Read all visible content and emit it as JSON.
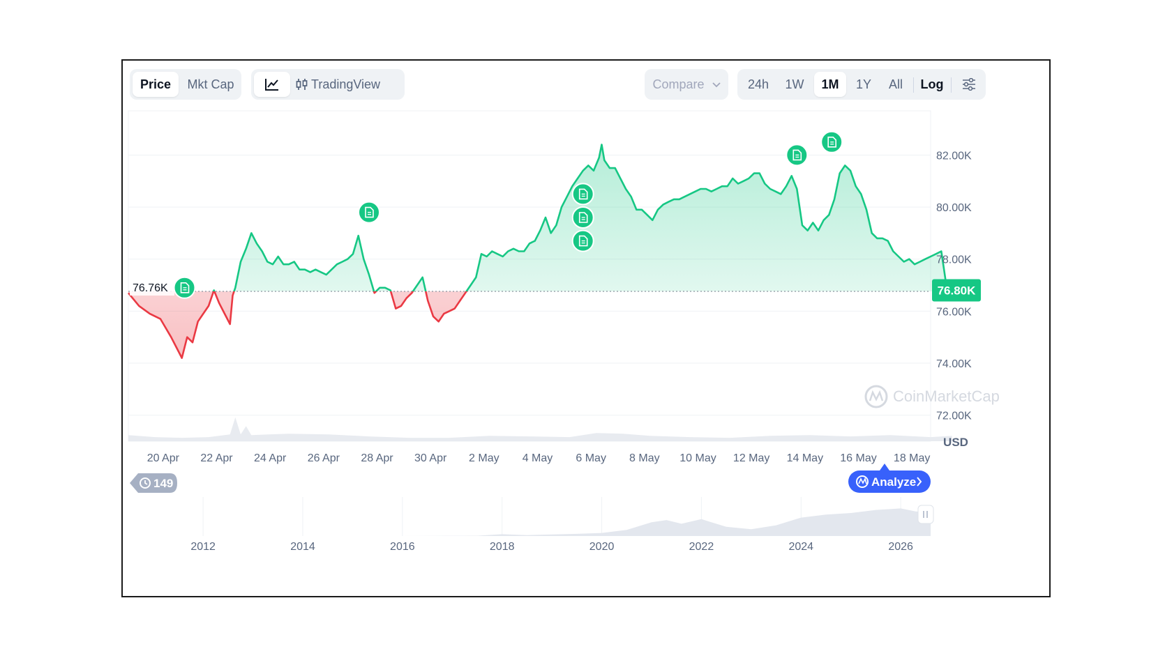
{
  "toolbar": {
    "view_tabs": [
      {
        "label": "Price",
        "active": true
      },
      {
        "label": "Mkt Cap",
        "active": false
      }
    ],
    "chart_modes": [
      {
        "icon": "line-chart-icon",
        "label": "",
        "active": true
      },
      {
        "icon": "candlestick-icon",
        "label": "TradingView",
        "active": false
      }
    ],
    "compare_label": "Compare",
    "ranges": [
      {
        "label": "24h",
        "active": false
      },
      {
        "label": "1W",
        "active": false
      },
      {
        "label": "1M",
        "active": true
      },
      {
        "label": "1Y",
        "active": false
      },
      {
        "label": "All",
        "active": false
      }
    ],
    "log_label": "Log",
    "settings_icon": "sliders-icon"
  },
  "watermark": "CoinMarketCap",
  "news_badge_count": "149",
  "analyze_label": "Analyze",
  "colors": {
    "up": "#16c784",
    "down": "#ea3943",
    "accent": "#3861fb"
  },
  "chart_data": {
    "type": "area",
    "currency": "USD",
    "baseline_value": 76.76,
    "baseline_label": "76.76K",
    "current_value": 76.8,
    "current_label": "76.80K",
    "ylim": [
      71.0,
      83.7
    ],
    "yticks": [
      {
        "value": 72.0,
        "label": "72.00K"
      },
      {
        "value": 74.0,
        "label": "74.00K"
      },
      {
        "value": 76.0,
        "label": "76.00K"
      },
      {
        "value": 78.0,
        "label": "78.00K"
      },
      {
        "value": 80.0,
        "label": "80.00K"
      },
      {
        "value": 82.0,
        "label": "82.00K"
      }
    ],
    "xlim": [
      0,
      30
    ],
    "xticks": [
      {
        "value": 1.3,
        "label": "20 Apr"
      },
      {
        "value": 3.3,
        "label": "22 Apr"
      },
      {
        "value": 5.3,
        "label": "24 Apr"
      },
      {
        "value": 7.3,
        "label": "26 Apr"
      },
      {
        "value": 9.3,
        "label": "28 Apr"
      },
      {
        "value": 11.3,
        "label": "30 Apr"
      },
      {
        "value": 13.3,
        "label": "2 May"
      },
      {
        "value": 15.3,
        "label": "4 May"
      },
      {
        "value": 17.3,
        "label": "6 May"
      },
      {
        "value": 19.3,
        "label": "8 May"
      },
      {
        "value": 21.3,
        "label": "10 May"
      },
      {
        "value": 23.3,
        "label": "12 May"
      },
      {
        "value": 25.3,
        "label": "14 May"
      },
      {
        "value": 27.3,
        "label": "16 May"
      },
      {
        "value": 29.3,
        "label": "18 May"
      }
    ],
    "price": [
      [
        0.0,
        76.7
      ],
      [
        0.4,
        76.2
      ],
      [
        0.8,
        75.9
      ],
      [
        1.2,
        75.7
      ],
      [
        1.6,
        75.0
      ],
      [
        1.8,
        74.6
      ],
      [
        2.0,
        74.2
      ],
      [
        2.2,
        75.0
      ],
      [
        2.4,
        74.8
      ],
      [
        2.6,
        75.6
      ],
      [
        2.8,
        75.9
      ],
      [
        3.0,
        76.2
      ],
      [
        3.2,
        76.8
      ],
      [
        3.4,
        76.3
      ],
      [
        3.6,
        75.9
      ],
      [
        3.8,
        75.5
      ],
      [
        3.9,
        76.6
      ],
      [
        4.0,
        76.9
      ],
      [
        4.2,
        77.9
      ],
      [
        4.4,
        78.4
      ],
      [
        4.6,
        79.0
      ],
      [
        4.8,
        78.6
      ],
      [
        5.0,
        78.3
      ],
      [
        5.2,
        77.9
      ],
      [
        5.4,
        77.8
      ],
      [
        5.6,
        78.1
      ],
      [
        5.8,
        77.8
      ],
      [
        6.0,
        77.8
      ],
      [
        6.2,
        77.9
      ],
      [
        6.4,
        77.6
      ],
      [
        6.6,
        77.6
      ],
      [
        6.8,
        77.5
      ],
      [
        7.0,
        77.6
      ],
      [
        7.2,
        77.5
      ],
      [
        7.4,
        77.4
      ],
      [
        7.6,
        77.6
      ],
      [
        7.8,
        77.8
      ],
      [
        8.0,
        77.9
      ],
      [
        8.2,
        78.0
      ],
      [
        8.4,
        78.2
      ],
      [
        8.6,
        78.9
      ],
      [
        8.8,
        78.0
      ],
      [
        9.0,
        77.4
      ],
      [
        9.2,
        76.7
      ],
      [
        9.4,
        76.9
      ],
      [
        9.6,
        76.9
      ],
      [
        9.8,
        76.8
      ],
      [
        10.0,
        76.1
      ],
      [
        10.2,
        76.2
      ],
      [
        10.4,
        76.5
      ],
      [
        10.6,
        76.7
      ],
      [
        10.8,
        77.0
      ],
      [
        11.0,
        77.3
      ],
      [
        11.2,
        76.4
      ],
      [
        11.4,
        75.8
      ],
      [
        11.6,
        75.6
      ],
      [
        11.8,
        75.9
      ],
      [
        12.0,
        76.0
      ],
      [
        12.2,
        76.1
      ],
      [
        12.4,
        76.4
      ],
      [
        12.6,
        76.7
      ],
      [
        12.8,
        77.0
      ],
      [
        13.0,
        77.3
      ],
      [
        13.2,
        78.2
      ],
      [
        13.4,
        78.1
      ],
      [
        13.6,
        78.3
      ],
      [
        13.8,
        78.2
      ],
      [
        14.0,
        78.1
      ],
      [
        14.2,
        78.3
      ],
      [
        14.4,
        78.4
      ],
      [
        14.6,
        78.3
      ],
      [
        14.8,
        78.3
      ],
      [
        15.0,
        78.6
      ],
      [
        15.2,
        78.7
      ],
      [
        15.4,
        79.1
      ],
      [
        15.6,
        79.6
      ],
      [
        15.8,
        79.0
      ],
      [
        16.0,
        79.3
      ],
      [
        16.2,
        80.0
      ],
      [
        16.4,
        80.4
      ],
      [
        16.6,
        80.8
      ],
      [
        16.8,
        81.1
      ],
      [
        17.0,
        81.4
      ],
      [
        17.2,
        81.6
      ],
      [
        17.4,
        81.4
      ],
      [
        17.6,
        81.9
      ],
      [
        17.7,
        82.4
      ],
      [
        17.8,
        81.8
      ],
      [
        18.0,
        81.5
      ],
      [
        18.2,
        81.5
      ],
      [
        18.4,
        81.1
      ],
      [
        18.6,
        80.7
      ],
      [
        18.8,
        80.4
      ],
      [
        19.0,
        79.9
      ],
      [
        19.2,
        79.9
      ],
      [
        19.4,
        79.7
      ],
      [
        19.6,
        79.5
      ],
      [
        19.8,
        79.9
      ],
      [
        20.0,
        80.1
      ],
      [
        20.2,
        80.2
      ],
      [
        20.4,
        80.3
      ],
      [
        20.6,
        80.3
      ],
      [
        20.8,
        80.4
      ],
      [
        21.0,
        80.5
      ],
      [
        21.2,
        80.6
      ],
      [
        21.4,
        80.7
      ],
      [
        21.6,
        80.7
      ],
      [
        21.8,
        80.6
      ],
      [
        22.0,
        80.7
      ],
      [
        22.2,
        80.8
      ],
      [
        22.4,
        80.8
      ],
      [
        22.6,
        81.1
      ],
      [
        22.8,
        80.9
      ],
      [
        23.0,
        81.0
      ],
      [
        23.2,
        81.1
      ],
      [
        23.4,
        81.3
      ],
      [
        23.6,
        81.3
      ],
      [
        23.8,
        80.9
      ],
      [
        24.0,
        80.7
      ],
      [
        24.2,
        80.6
      ],
      [
        24.4,
        80.5
      ],
      [
        24.6,
        80.8
      ],
      [
        24.8,
        81.2
      ],
      [
        25.0,
        80.7
      ],
      [
        25.2,
        79.3
      ],
      [
        25.4,
        79.1
      ],
      [
        25.6,
        79.4
      ],
      [
        25.8,
        79.1
      ],
      [
        26.0,
        79.5
      ],
      [
        26.2,
        79.7
      ],
      [
        26.4,
        80.3
      ],
      [
        26.6,
        81.3
      ],
      [
        26.8,
        81.6
      ],
      [
        27.0,
        81.4
      ],
      [
        27.2,
        80.8
      ],
      [
        27.4,
        80.5
      ],
      [
        27.6,
        79.9
      ],
      [
        27.8,
        79.0
      ],
      [
        28.0,
        78.8
      ],
      [
        28.2,
        78.8
      ],
      [
        28.4,
        78.7
      ],
      [
        28.6,
        78.3
      ],
      [
        28.8,
        78.1
      ],
      [
        29.0,
        77.9
      ],
      [
        29.2,
        78.0
      ],
      [
        29.4,
        77.8
      ],
      [
        29.6,
        77.9
      ],
      [
        29.8,
        78.0
      ],
      [
        30.0,
        78.1
      ],
      [
        30.2,
        78.2
      ],
      [
        30.4,
        78.3
      ],
      [
        30.5,
        77.6
      ],
      [
        30.6,
        76.9
      ],
      [
        30.8,
        76.8
      ]
    ],
    "volume": [
      [
        0.0,
        0.9
      ],
      [
        1.0,
        0.6
      ],
      [
        2.0,
        0.5
      ],
      [
        3.0,
        0.6
      ],
      [
        3.8,
        1.0
      ],
      [
        4.0,
        3.5
      ],
      [
        4.2,
        1.0
      ],
      [
        4.4,
        2.2
      ],
      [
        4.6,
        0.9
      ],
      [
        6.0,
        1.1
      ],
      [
        7.5,
        1.0
      ],
      [
        9.0,
        0.7
      ],
      [
        10.5,
        0.5
      ],
      [
        12.0,
        0.5
      ],
      [
        13.5,
        0.8
      ],
      [
        15.0,
        0.7
      ],
      [
        16.5,
        0.6
      ],
      [
        17.5,
        1.2
      ],
      [
        18.5,
        1.1
      ],
      [
        19.5,
        0.8
      ],
      [
        21.0,
        0.6
      ],
      [
        22.5,
        0.5
      ],
      [
        24.0,
        0.8
      ],
      [
        25.5,
        0.9
      ],
      [
        27.0,
        0.7
      ],
      [
        28.5,
        0.9
      ],
      [
        30.0,
        0.6
      ],
      [
        30.8,
        0.8
      ]
    ],
    "news_markers": [
      {
        "x": 2.1,
        "y": 76.9
      },
      {
        "x": 9.0,
        "y": 79.8
      },
      {
        "x": 17.0,
        "y": 80.5
      },
      {
        "x": 17.0,
        "y": 79.6
      },
      {
        "x": 17.0,
        "y": 78.7
      },
      {
        "x": 25.0,
        "y": 82.0
      },
      {
        "x": 26.3,
        "y": 82.5
      }
    ],
    "navigator": {
      "xlim": [
        2010.5,
        2026.6
      ],
      "xticks": [
        {
          "value": 2012,
          "label": "2012"
        },
        {
          "value": 2014,
          "label": "2014"
        },
        {
          "value": 2016,
          "label": "2016"
        },
        {
          "value": 2018,
          "label": "2018"
        },
        {
          "value": 2020,
          "label": "2020"
        },
        {
          "value": 2022,
          "label": "2022"
        },
        {
          "value": 2024,
          "label": "2024"
        },
        {
          "value": 2026,
          "label": "2026"
        }
      ],
      "series": [
        [
          2010.5,
          0.0
        ],
        [
          2016.0,
          0.0
        ],
        [
          2017.5,
          0.01
        ],
        [
          2018.0,
          0.06
        ],
        [
          2018.5,
          0.03
        ],
        [
          2019.5,
          0.07
        ],
        [
          2020.0,
          0.1
        ],
        [
          2020.5,
          0.2
        ],
        [
          2021.0,
          0.45
        ],
        [
          2021.3,
          0.52
        ],
        [
          2021.6,
          0.4
        ],
        [
          2022.0,
          0.55
        ],
        [
          2022.5,
          0.3
        ],
        [
          2023.0,
          0.22
        ],
        [
          2023.5,
          0.35
        ],
        [
          2024.0,
          0.6
        ],
        [
          2024.5,
          0.7
        ],
        [
          2025.0,
          0.75
        ],
        [
          2025.5,
          0.85
        ],
        [
          2026.0,
          0.9
        ],
        [
          2026.3,
          0.8
        ],
        [
          2026.6,
          0.78
        ]
      ]
    }
  }
}
